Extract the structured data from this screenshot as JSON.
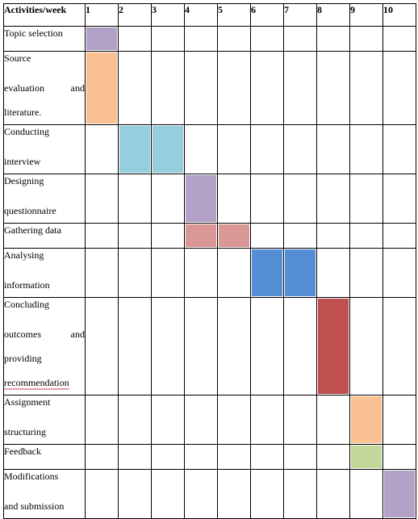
{
  "table": {
    "header": {
      "activities_label": "Activities/week",
      "weeks": [
        "1",
        "2",
        "3",
        "4",
        "5",
        "6",
        "7",
        "8",
        "9",
        "10"
      ]
    },
    "rows": [
      {
        "lines": [
          "Topic selection"
        ],
        "weeks": [
          1
        ],
        "color": "#b2a2c8"
      },
      {
        "lines": [
          "Source",
          "evaluation and",
          "literature."
        ],
        "weeks": [
          1
        ],
        "color": "#fac292"
      },
      {
        "lines": [
          "Conducting",
          "interview"
        ],
        "weeks": [
          2,
          3
        ],
        "color": "#95cedd"
      },
      {
        "lines": [
          "Designing",
          "questionnaire"
        ],
        "weeks": [
          4
        ],
        "color": "#b2a2c8"
      },
      {
        "lines": [
          "Gathering data"
        ],
        "weeks": [
          4,
          5
        ],
        "color": "#d99795"
      },
      {
        "lines": [
          "Analysing",
          "information"
        ],
        "weeks": [
          6,
          7
        ],
        "color": "#558ed5"
      },
      {
        "lines": [
          "Concluding",
          "outcomes and",
          "providing",
          "recommendation"
        ],
        "weeks": [
          8
        ],
        "color": "#c0504d"
      },
      {
        "lines": [
          "Assignment",
          "structuring"
        ],
        "weeks": [
          9
        ],
        "color": "#fac292"
      },
      {
        "lines": [
          "Feedback"
        ],
        "weeks": [
          9
        ],
        "color": "#c3d79b"
      },
      {
        "lines": [
          "Modifications",
          "and submission"
        ],
        "weeks": [
          10
        ],
        "color": "#b2a2c8"
      }
    ]
  }
}
